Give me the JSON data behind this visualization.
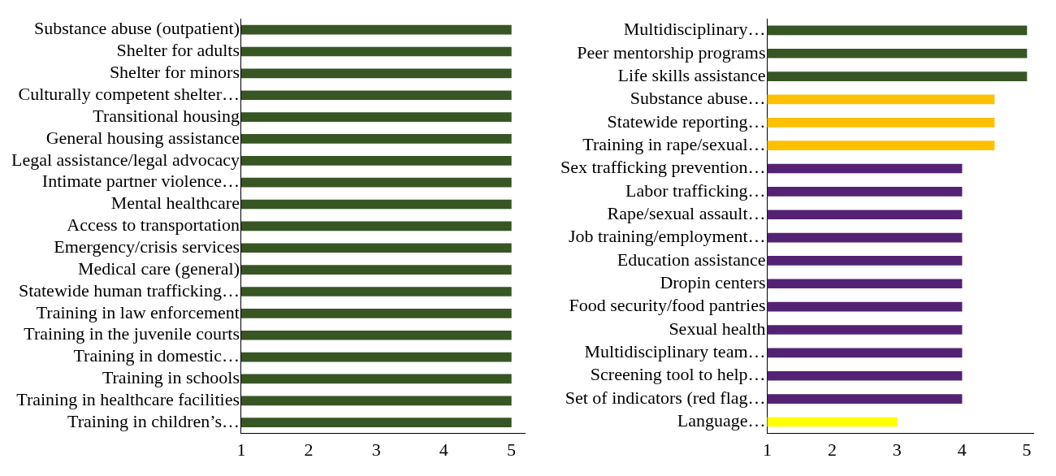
{
  "chart_data": [
    {
      "type": "bar",
      "orientation": "horizontal",
      "categories": [
        "Substance abuse (outpatient)",
        "Shelter for adults",
        "Shelter for minors",
        "Culturally competent shelter…",
        "Transitional housing",
        "General housing assistance",
        "Legal assistance/legal advocacy",
        "Intimate partner violence…",
        "Mental healthcare",
        "Access to transportation",
        "Emergency/crisis services",
        "Medical care (general)",
        "Statewide human trafficking…",
        "Training in law enforcement",
        "Training in the juvenile courts",
        "Training in domestic…",
        "Training in schools",
        "Training in healthcare facilities",
        "Training in children’s…"
      ],
      "values": [
        5,
        5,
        5,
        5,
        5,
        5,
        5,
        5,
        5,
        5,
        5,
        5,
        5,
        5,
        5,
        5,
        5,
        5,
        5
      ],
      "colors": [
        "#375623",
        "#375623",
        "#375623",
        "#375623",
        "#375623",
        "#375623",
        "#375623",
        "#375623",
        "#375623",
        "#375623",
        "#375623",
        "#375623",
        "#375623",
        "#375623",
        "#375623",
        "#375623",
        "#375623",
        "#375623",
        "#375623"
      ],
      "xlim": [
        1,
        5.2
      ],
      "xticks": [
        1,
        2,
        3,
        4,
        5
      ],
      "grid": false,
      "legend": false
    },
    {
      "type": "bar",
      "orientation": "horizontal",
      "categories": [
        "Multidisciplinary…",
        "Peer mentorship programs",
        "Life skills assistance",
        "Substance abuse…",
        "Statewide reporting…",
        "Training in rape/sexual…",
        "Sex trafficking prevention…",
        "Labor trafficking…",
        "Rape/sexual assault…",
        "Job training/employment…",
        "Education assistance",
        "Dropin centers",
        "Food security/food pantries",
        "Sexual health",
        "Multidisciplinary team…",
        "Screening tool to help…",
        "Set of indicators (red flag…",
        "Language…"
      ],
      "values": [
        5,
        5,
        5,
        4.5,
        4.5,
        4.5,
        4,
        4,
        4,
        4,
        4,
        4,
        4,
        4,
        4,
        4,
        4,
        3
      ],
      "colors": [
        "#375623",
        "#375623",
        "#375623",
        "#ffc000",
        "#ffc000",
        "#ffc000",
        "#532275",
        "#532275",
        "#532275",
        "#532275",
        "#532275",
        "#532275",
        "#532275",
        "#532275",
        "#532275",
        "#532275",
        "#532275",
        "#ffff00"
      ],
      "xlim": [
        1,
        5.1
      ],
      "xticks": [
        1,
        2,
        3,
        4,
        5
      ],
      "grid": false,
      "legend": false
    }
  ]
}
